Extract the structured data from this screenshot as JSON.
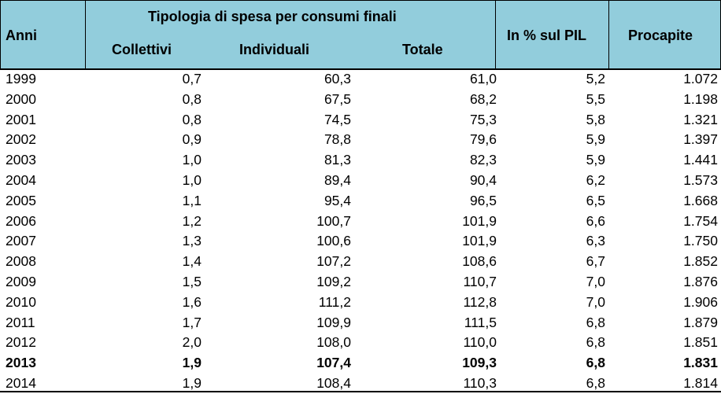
{
  "header": {
    "anni": "Anni",
    "group_title": "Tipologia di spesa per consumi finali",
    "collettivi": "Collettivi",
    "individuali": "Individuali",
    "totale": "Totale",
    "pil": "In % sul PIL",
    "procapite": "Procapite"
  },
  "rows": [
    {
      "year": "1999",
      "collettivi": "0,7",
      "individuali": "60,3",
      "totale": "61,0",
      "pil": "5,2",
      "procapite": "1.072",
      "bold": false
    },
    {
      "year": "2000",
      "collettivi": "0,8",
      "individuali": "67,5",
      "totale": "68,2",
      "pil": "5,5",
      "procapite": "1.198",
      "bold": false
    },
    {
      "year": "2001",
      "collettivi": "0,8",
      "individuali": "74,5",
      "totale": "75,3",
      "pil": "5,8",
      "procapite": "1.321",
      "bold": false
    },
    {
      "year": "2002",
      "collettivi": "0,9",
      "individuali": "78,8",
      "totale": "79,6",
      "pil": "5,9",
      "procapite": "1.397",
      "bold": false
    },
    {
      "year": "2003",
      "collettivi": "1,0",
      "individuali": "81,3",
      "totale": "82,3",
      "pil": "5,9",
      "procapite": "1.441",
      "bold": false
    },
    {
      "year": "2004",
      "collettivi": "1,0",
      "individuali": "89,4",
      "totale": "90,4",
      "pil": "6,2",
      "procapite": "1.573",
      "bold": false
    },
    {
      "year": "2005",
      "collettivi": "1,1",
      "individuali": "95,4",
      "totale": "96,5",
      "pil": "6,5",
      "procapite": "1.668",
      "bold": false
    },
    {
      "year": "2006",
      "collettivi": "1,2",
      "individuali": "100,7",
      "totale": "101,9",
      "pil": "6,6",
      "procapite": "1.754",
      "bold": false
    },
    {
      "year": "2007",
      "collettivi": "1,3",
      "individuali": "100,6",
      "totale": "101,9",
      "pil": "6,3",
      "procapite": "1.750",
      "bold": false
    },
    {
      "year": "2008",
      "collettivi": "1,4",
      "individuali": "107,2",
      "totale": "108,6",
      "pil": "6,7",
      "procapite": "1.852",
      "bold": false
    },
    {
      "year": "2009",
      "collettivi": "1,5",
      "individuali": "109,2",
      "totale": "110,7",
      "pil": "7,0",
      "procapite": "1.876",
      "bold": false
    },
    {
      "year": "2010",
      "collettivi": "1,6",
      "individuali": "111,2",
      "totale": "112,8",
      "pil": "7,0",
      "procapite": "1.906",
      "bold": false
    },
    {
      "year": "2011",
      "collettivi": "1,7",
      "individuali": "109,9",
      "totale": "111,5",
      "pil": "6,8",
      "procapite": "1.879",
      "bold": false
    },
    {
      "year": "2012",
      "collettivi": "2,0",
      "individuali": "108,0",
      "totale": "110,0",
      "pil": "6,8",
      "procapite": "1.851",
      "bold": false
    },
    {
      "year": "2013",
      "collettivi": "1,9",
      "individuali": "107,4",
      "totale": "109,3",
      "pil": "6,8",
      "procapite": "1.831",
      "bold": true
    },
    {
      "year": "2014",
      "collettivi": "1,9",
      "individuali": "108,4",
      "totale": "110,3",
      "pil": "6,8",
      "procapite": "1.814",
      "bold": false
    }
  ]
}
